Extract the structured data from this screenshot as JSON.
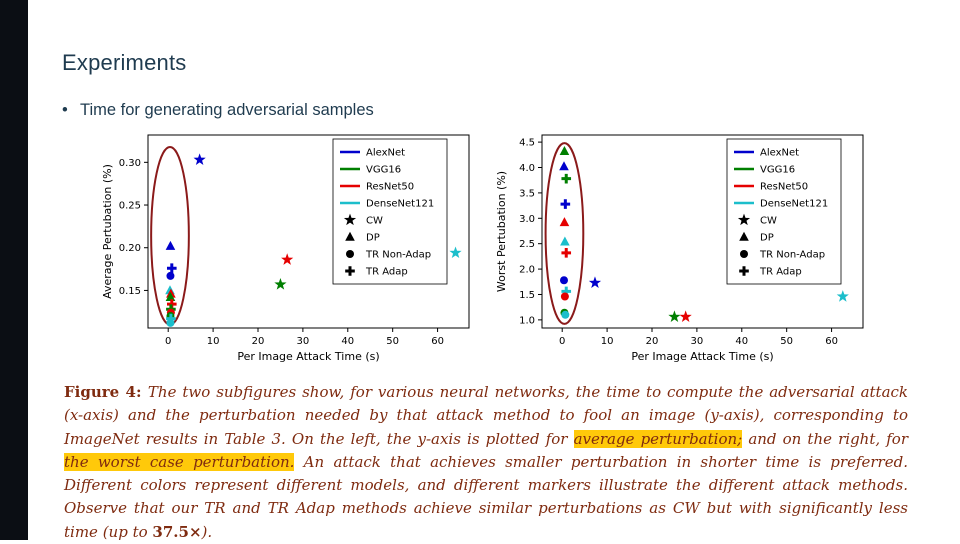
{
  "slide": {
    "title": "Experiments",
    "bullet_marker": "•",
    "bullet_text": "Time for generating adversarial samples"
  },
  "model_colors": {
    "AlexNet": "#0000cc",
    "VGG16": "#007f00",
    "ResNet50": "#e50000",
    "DenseNet121": "#1cbecb"
  },
  "annotation_color": "#8b1a1a",
  "chart_data": [
    {
      "type": "scatter",
      "title": "",
      "xlabel": "Per Image Attack Time (s)",
      "ylabel": "Average Pertubation (%)",
      "xlim": [
        -4.5,
        67
      ],
      "ylim": [
        0.106,
        0.332
      ],
      "xticks": [
        0,
        10,
        20,
        30,
        40,
        50,
        60
      ],
      "xtick_labels": [
        "0",
        "10",
        "20",
        "30",
        "40",
        "50",
        "60"
      ],
      "yticks": [
        0.15,
        0.2,
        0.25,
        0.3
      ],
      "ytick_labels": [
        "0.15",
        "0.20",
        "0.25",
        "0.30"
      ],
      "grid": false,
      "legend_position": "upper right",
      "legend": [
        {
          "label": "AlexNet",
          "type": "line",
          "color": "#0000cc"
        },
        {
          "label": "VGG16",
          "type": "line",
          "color": "#007f00"
        },
        {
          "label": "ResNet50",
          "type": "line",
          "color": "#e50000"
        },
        {
          "label": "DenseNet121",
          "type": "line",
          "color": "#1cbecb"
        },
        {
          "label": "CW",
          "type": "marker",
          "marker": "star"
        },
        {
          "label": "DP",
          "type": "marker",
          "marker": "triangle"
        },
        {
          "label": "TR Non-Adap",
          "type": "marker",
          "marker": "circle"
        },
        {
          "label": "TR Adap",
          "type": "marker",
          "marker": "plus"
        }
      ],
      "points": [
        {
          "model": "AlexNet",
          "method": "CW",
          "marker": "star",
          "x": 7,
          "y": 0.303
        },
        {
          "model": "ResNet50",
          "method": "CW",
          "marker": "star",
          "x": 26.5,
          "y": 0.186
        },
        {
          "model": "VGG16",
          "method": "CW",
          "marker": "star",
          "x": 25,
          "y": 0.157
        },
        {
          "model": "DenseNet121",
          "method": "CW",
          "marker": "star",
          "x": 64,
          "y": 0.194
        },
        {
          "model": "AlexNet",
          "method": "DP",
          "marker": "triangle",
          "x": 0.5,
          "y": 0.202
        },
        {
          "model": "AlexNet",
          "method": "TR Adap",
          "marker": "plus",
          "x": 0.8,
          "y": 0.176
        },
        {
          "model": "AlexNet",
          "method": "TR Non-Adap",
          "marker": "circle",
          "x": 0.5,
          "y": 0.167
        },
        {
          "model": "DenseNet121",
          "method": "DP",
          "marker": "triangle",
          "x": 0.4,
          "y": 0.15
        },
        {
          "model": "ResNet50",
          "method": "DP",
          "marker": "triangle",
          "x": 0.6,
          "y": 0.146
        },
        {
          "model": "VGG16",
          "method": "DP",
          "marker": "triangle",
          "x": 0.5,
          "y": 0.142
        },
        {
          "model": "ResNet50",
          "method": "TR Adap",
          "marker": "plus",
          "x": 0.8,
          "y": 0.134
        },
        {
          "model": "VGG16",
          "method": "TR Adap",
          "marker": "plus",
          "x": 0.6,
          "y": 0.128
        },
        {
          "model": "ResNet50",
          "method": "TR Non-Adap",
          "marker": "circle",
          "x": 0.6,
          "y": 0.124
        },
        {
          "model": "VGG16",
          "method": "TR Non-Adap",
          "marker": "circle",
          "x": 0.5,
          "y": 0.12
        },
        {
          "model": "DenseNet121",
          "method": "TR Adap",
          "marker": "plus",
          "x": 0.6,
          "y": 0.117
        },
        {
          "model": "DenseNet121",
          "method": "TR Non-Adap",
          "marker": "circle",
          "x": 0.5,
          "y": 0.112
        }
      ],
      "annotation_ellipse": {
        "cx": 0.4,
        "cy": 0.214,
        "rx": 4.2,
        "ry": 0.104,
        "color": "#8b1a1a"
      }
    },
    {
      "type": "scatter",
      "title": "",
      "xlabel": "Per Image Attack Time (s)",
      "ylabel": "Worst Pertubation (%)",
      "xlim": [
        -4.5,
        67
      ],
      "ylim": [
        0.84,
        4.64
      ],
      "xticks": [
        0,
        10,
        20,
        30,
        40,
        50,
        60
      ],
      "xtick_labels": [
        "0",
        "10",
        "20",
        "30",
        "40",
        "50",
        "60"
      ],
      "yticks": [
        1.0,
        1.5,
        2.0,
        2.5,
        3.0,
        3.5,
        4.0,
        4.5
      ],
      "ytick_labels": [
        "1.0",
        "1.5",
        "2.0",
        "2.5",
        "3.0",
        "3.5",
        "4.0",
        "4.5"
      ],
      "grid": false,
      "legend_position": "upper right",
      "legend": [
        {
          "label": "AlexNet",
          "type": "line",
          "color": "#0000cc"
        },
        {
          "label": "VGG16",
          "type": "line",
          "color": "#007f00"
        },
        {
          "label": "ResNet50",
          "type": "line",
          "color": "#e50000"
        },
        {
          "label": "DenseNet121",
          "type": "line",
          "color": "#1cbecb"
        },
        {
          "label": "CW",
          "type": "marker",
          "marker": "star"
        },
        {
          "label": "DP",
          "type": "marker",
          "marker": "triangle"
        },
        {
          "label": "TR Non-Adap",
          "type": "marker",
          "marker": "circle"
        },
        {
          "label": "TR Adap",
          "type": "marker",
          "marker": "plus"
        }
      ],
      "points": [
        {
          "model": "VGG16",
          "method": "DP",
          "marker": "triangle",
          "x": 0.5,
          "y": 4.32
        },
        {
          "model": "AlexNet",
          "method": "DP",
          "marker": "triangle",
          "x": 0.4,
          "y": 4.02
        },
        {
          "model": "VGG16",
          "method": "TR Adap",
          "marker": "plus",
          "x": 0.9,
          "y": 3.78
        },
        {
          "model": "AlexNet",
          "method": "TR Adap",
          "marker": "plus",
          "x": 0.7,
          "y": 3.28
        },
        {
          "model": "ResNet50",
          "method": "DP",
          "marker": "triangle",
          "x": 0.5,
          "y": 2.92
        },
        {
          "model": "DenseNet121",
          "method": "DP",
          "marker": "triangle",
          "x": 0.6,
          "y": 2.54
        },
        {
          "model": "ResNet50",
          "method": "TR Adap",
          "marker": "plus",
          "x": 0.9,
          "y": 2.32
        },
        {
          "model": "AlexNet",
          "method": "TR Non-Adap",
          "marker": "circle",
          "x": 0.4,
          "y": 1.78
        },
        {
          "model": "DenseNet121",
          "method": "TR Adap",
          "marker": "plus",
          "x": 0.9,
          "y": 1.56
        },
        {
          "model": "ResNet50",
          "method": "TR Non-Adap",
          "marker": "circle",
          "x": 0.6,
          "y": 1.46
        },
        {
          "model": "VGG16",
          "method": "TR Non-Adap",
          "marker": "circle",
          "x": 0.5,
          "y": 1.14
        },
        {
          "model": "DenseNet121",
          "method": "TR Non-Adap",
          "marker": "circle",
          "x": 0.7,
          "y": 1.1
        },
        {
          "model": "AlexNet",
          "method": "CW",
          "marker": "star",
          "x": 7.3,
          "y": 1.73
        },
        {
          "model": "VGG16",
          "method": "CW",
          "marker": "star",
          "x": 25,
          "y": 1.06
        },
        {
          "model": "ResNet50",
          "method": "CW",
          "marker": "star",
          "x": 27.5,
          "y": 1.06
        },
        {
          "model": "DenseNet121",
          "method": "CW",
          "marker": "star",
          "x": 62.5,
          "y": 1.46
        }
      ],
      "annotation_ellipse": {
        "cx": 0.5,
        "cy": 2.7,
        "rx": 4.2,
        "ry": 1.78,
        "color": "#8b1a1a"
      }
    }
  ],
  "caption": {
    "segments": [
      {
        "text": "Figure 4: ",
        "style": "label"
      },
      {
        "text": "The two subfigures show, for various neural networks, the time to compute the adversarial attack (x-axis) and the perturbation needed by that attack method to fool an image (y-axis), corresponding to ImageNet results in Table 3. On the left, the y-axis is plotted for ",
        "style": "normal"
      },
      {
        "text": "average perturbation;",
        "style": "highlight"
      },
      {
        "text": " and on the right, for ",
        "style": "normal"
      },
      {
        "text": "the worst case perturbation.",
        "style": "highlight"
      },
      {
        "text": " An attack that achieves smaller perturbation in shorter time is preferred. Different colors represent different models, and different markers illustrate the different attack methods. Observe that our TR and TR Adap methods achieve similar perturbations as CW but with significantly less time (up to ",
        "style": "normal"
      },
      {
        "text": "37.5×",
        "style": "bold"
      },
      {
        "text": ").",
        "style": "normal"
      }
    ]
  }
}
